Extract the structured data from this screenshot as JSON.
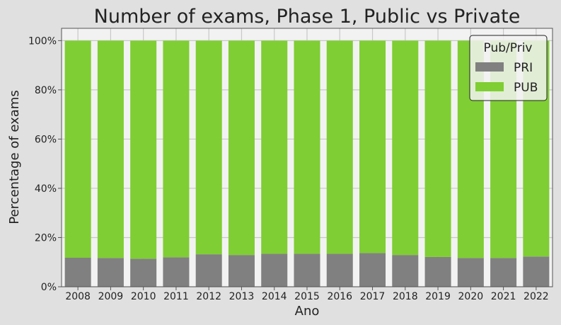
{
  "chart_data": {
    "type": "bar",
    "stacked": true,
    "normalized": true,
    "title": "Number of exams, Phase 1, Public vs Private",
    "xlabel": "Ano",
    "ylabel": "Percentage of exams",
    "ylim": [
      0,
      105
    ],
    "yticks": [
      0,
      20,
      40,
      60,
      80,
      100
    ],
    "ytick_labels": [
      "0%",
      "20%",
      "40%",
      "60%",
      "80%",
      "100%"
    ],
    "grid": true,
    "legend": {
      "title": "Pub/Priv",
      "placement": "top-right"
    },
    "categories": [
      "2008",
      "2009",
      "2010",
      "2011",
      "2012",
      "2013",
      "2014",
      "2015",
      "2016",
      "2017",
      "2018",
      "2019",
      "2020",
      "2021",
      "2022"
    ],
    "series": [
      {
        "name": "PRI",
        "color": "#808080",
        "values": [
          11.8,
          11.7,
          11.4,
          12.0,
          13.2,
          12.9,
          13.4,
          13.4,
          13.4,
          13.7,
          12.9,
          12.1,
          11.7,
          11.7,
          12.3
        ]
      },
      {
        "name": "PUB",
        "color": "#7fce33",
        "values": [
          88.2,
          88.3,
          88.6,
          88.0,
          86.8,
          87.1,
          86.6,
          86.6,
          86.6,
          86.3,
          87.1,
          87.9,
          88.3,
          88.3,
          87.7
        ]
      }
    ],
    "colors": {
      "plot_background": "#f2f2f2",
      "figure_background": "#e0e0e0",
      "grid": "#c8c8c8"
    }
  }
}
